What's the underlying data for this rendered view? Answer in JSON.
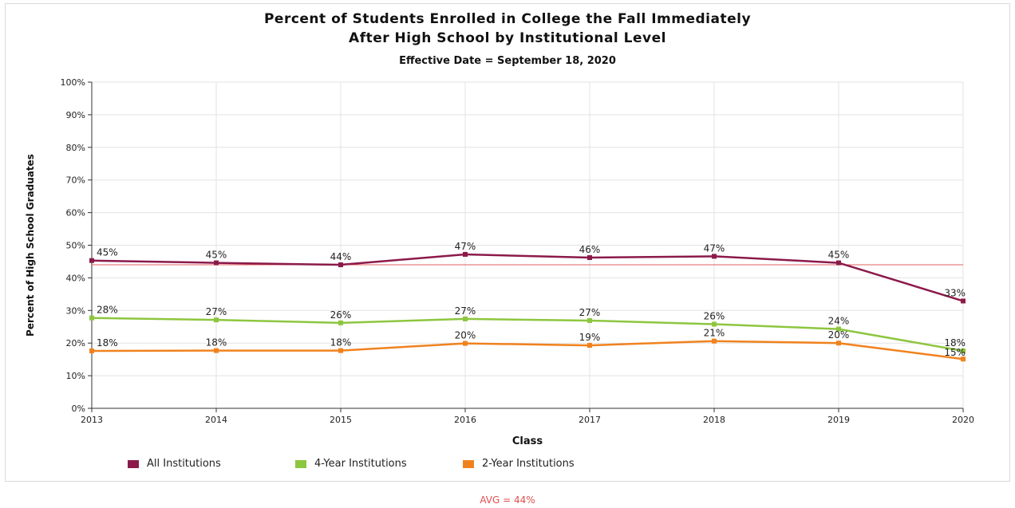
{
  "chart_data": {
    "type": "line",
    "title_line1": "Percent of Students Enrolled in College the Fall Immediately",
    "title_line2": "After High School by Institutional Level",
    "subtitle": "Effective Date = September 18, 2020",
    "xlabel": "Class",
    "ylabel": "Percent of High School Graduates",
    "x": [
      "2013",
      "2014",
      "2015",
      "2016",
      "2017",
      "2018",
      "2019",
      "2020"
    ],
    "y_ticks": [
      "0%",
      "10%",
      "20%",
      "30%",
      "40%",
      "50%",
      "60%",
      "70%",
      "80%",
      "90%",
      "100%"
    ],
    "ylim": [
      0,
      100
    ],
    "grid": true,
    "legend_position": "bottom",
    "avg_line": 44,
    "avg_label": "AVG = 44%",
    "series": [
      {
        "name": "All Institutions",
        "color": "#8b1a4a",
        "values": [
          45.3,
          44.6,
          44.0,
          47.2,
          46.2,
          46.6,
          44.6,
          32.9
        ],
        "labels": [
          "45%",
          "45%",
          "44%",
          "47%",
          "46%",
          "47%",
          "45%",
          "33%"
        ]
      },
      {
        "name": "4-Year Institutions",
        "color": "#8dc63f",
        "values": [
          27.7,
          27.1,
          26.2,
          27.4,
          26.9,
          25.8,
          24.3,
          17.6
        ],
        "labels": [
          "28%",
          "27%",
          "26%",
          "27%",
          "27%",
          "26%",
          "24%",
          "18%"
        ]
      },
      {
        "name": "2-Year Institutions",
        "color": "#f0821e",
        "values": [
          17.6,
          17.7,
          17.7,
          19.9,
          19.3,
          20.6,
          20.0,
          15.1
        ],
        "labels": [
          "18%",
          "18%",
          "18%",
          "20%",
          "19%",
          "21%",
          "20%",
          "15%"
        ]
      }
    ],
    "avg_color": "#e06060"
  }
}
